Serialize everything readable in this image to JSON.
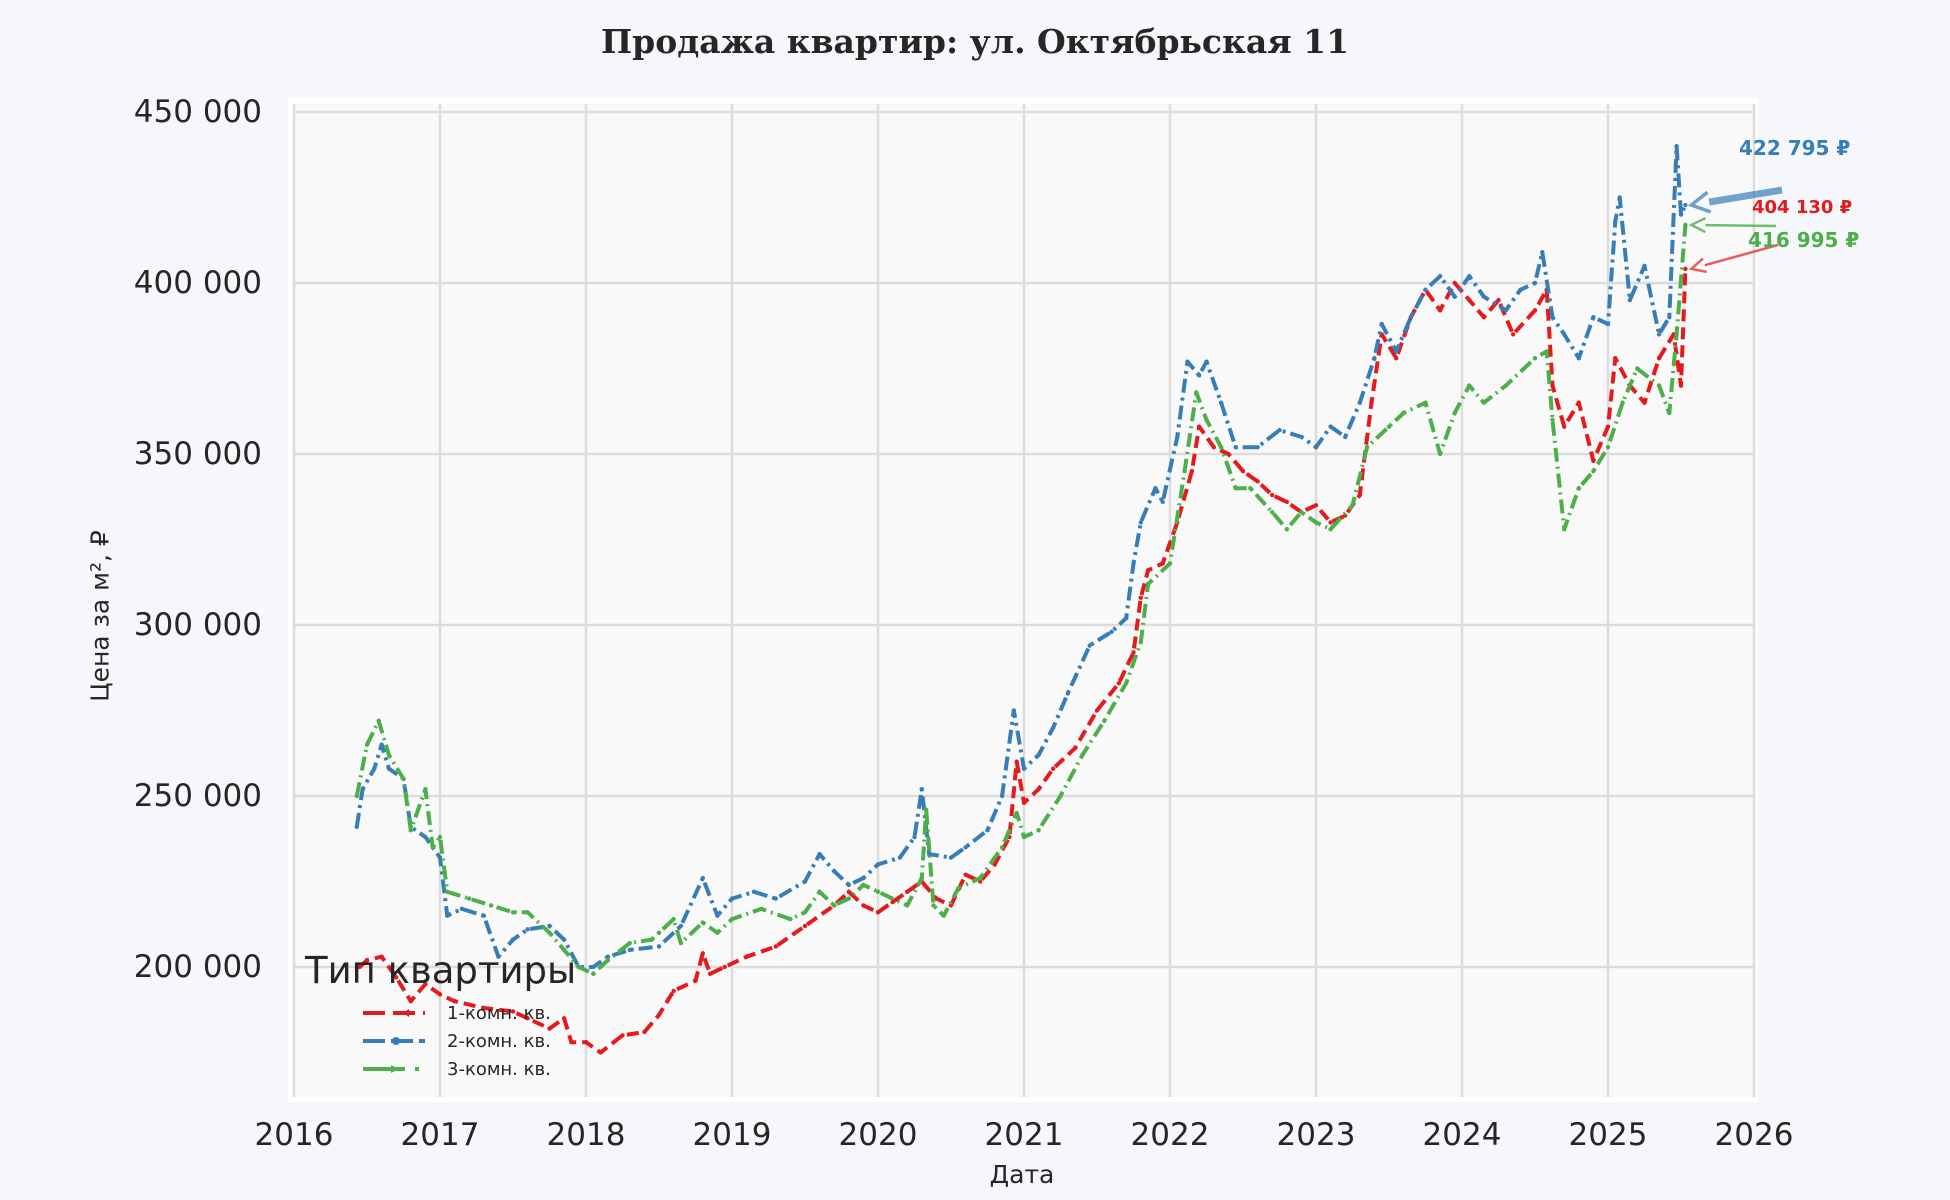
{
  "chart_data": {
    "type": "line",
    "title": "Продажа квартир: ул. Октябрьская 11",
    "xlabel": "Дата",
    "ylabel": "Цена за м², ₽",
    "xlim": [
      2016,
      2026
    ],
    "ylim": [
      160000,
      452000
    ],
    "grid": true,
    "legend_position": "lower left",
    "x_ticks": [
      "2016",
      "2017",
      "2018",
      "2019",
      "2020",
      "2021",
      "2022",
      "2023",
      "2024",
      "2025",
      "2026"
    ],
    "y_ticks": [
      200000,
      250000,
      300000,
      350000,
      400000,
      450000
    ],
    "y_tick_labels": [
      "200 000",
      "250 000",
      "300 000",
      "350 000",
      "400 000",
      "450 000"
    ],
    "legend_title": "Тип квартиры",
    "series": [
      {
        "name": "1-комн. кв.",
        "color": "#e41a1c",
        "dash": "12 6",
        "x": [
          2016.45,
          2016.5,
          2016.6,
          2016.7,
          2016.8,
          2016.9,
          2017.0,
          2017.1,
          2017.3,
          2017.5,
          2017.6,
          2017.75,
          2017.85,
          2017.9,
          2018.0,
          2018.1,
          2018.25,
          2018.4,
          2018.5,
          2018.6,
          2018.75,
          2018.8,
          2018.85,
          2018.95,
          2019.1,
          2019.3,
          2019.5,
          2019.7,
          2019.8,
          2019.9,
          2020.0,
          2020.1,
          2020.2,
          2020.3,
          2020.4,
          2020.5,
          2020.6,
          2020.7,
          2020.8,
          2020.9,
          2020.95,
          2021.0,
          2021.1,
          2021.2,
          2021.35,
          2021.5,
          2021.65,
          2021.75,
          2021.8,
          2021.85,
          2021.95,
          2022.05,
          2022.15,
          2022.2,
          2022.3,
          2022.4,
          2022.5,
          2022.6,
          2022.7,
          2022.8,
          2022.9,
          2023.0,
          2023.1,
          2023.2,
          2023.3,
          2023.38,
          2023.45,
          2023.55,
          2023.65,
          2023.75,
          2023.85,
          2023.95,
          2024.05,
          2024.15,
          2024.25,
          2024.35,
          2024.5,
          2024.58,
          2024.62,
          2024.7,
          2024.8,
          2024.9,
          2025.0,
          2025.05,
          2025.15,
          2025.25,
          2025.35,
          2025.45,
          2025.5,
          2025.53
        ],
        "y": [
          200000,
          202000,
          203000,
          197000,
          190000,
          195000,
          192000,
          190000,
          188000,
          187000,
          185000,
          182000,
          185000,
          178000,
          178000,
          175000,
          180000,
          181000,
          186000,
          193000,
          196000,
          204000,
          198000,
          200000,
          203000,
          206000,
          212000,
          218000,
          222000,
          218000,
          216000,
          219000,
          222000,
          225000,
          220000,
          218000,
          227000,
          225000,
          230000,
          238000,
          260000,
          248000,
          252000,
          258000,
          264000,
          275000,
          283000,
          292000,
          308000,
          316000,
          318000,
          330000,
          345000,
          358000,
          352000,
          350000,
          345000,
          342000,
          338000,
          336000,
          333000,
          335000,
          330000,
          332000,
          338000,
          365000,
          385000,
          378000,
          390000,
          398000,
          392000,
          400000,
          395000,
          390000,
          395000,
          385000,
          392000,
          398000,
          370000,
          358000,
          365000,
          348000,
          358000,
          378000,
          370000,
          365000,
          378000,
          385000,
          370000,
          404130
        ]
      },
      {
        "name": "2-комн. кв.",
        "color": "#377eb8",
        "dash": "14 5 3 5",
        "x": [
          2016.43,
          2016.47,
          2016.55,
          2016.6,
          2016.65,
          2016.75,
          2016.8,
          2016.9,
          2017.0,
          2017.05,
          2017.15,
          2017.3,
          2017.4,
          2017.5,
          2017.6,
          2017.75,
          2017.85,
          2017.95,
          2018.05,
          2018.15,
          2018.3,
          2018.5,
          2018.65,
          2018.8,
          2018.9,
          2019.0,
          2019.15,
          2019.3,
          2019.5,
          2019.6,
          2019.7,
          2019.8,
          2019.9,
          2020.0,
          2020.15,
          2020.25,
          2020.3,
          2020.35,
          2020.5,
          2020.6,
          2020.75,
          2020.85,
          2020.93,
          2021.0,
          2021.1,
          2021.2,
          2021.3,
          2021.45,
          2021.6,
          2021.7,
          2021.75,
          2021.8,
          2021.9,
          2021.95,
          2022.05,
          2022.12,
          2022.2,
          2022.25,
          2022.35,
          2022.45,
          2022.6,
          2022.75,
          2022.9,
          2023.0,
          2023.1,
          2023.2,
          2023.3,
          2023.4,
          2023.45,
          2023.55,
          2023.65,
          2023.75,
          2023.85,
          2023.95,
          2024.05,
          2024.15,
          2024.3,
          2024.4,
          2024.5,
          2024.55,
          2024.62,
          2024.7,
          2024.8,
          2024.9,
          2025.0,
          2025.05,
          2025.08,
          2025.15,
          2025.25,
          2025.35,
          2025.42,
          2025.47,
          2025.5,
          2025.53
        ],
        "y": [
          241000,
          252000,
          258000,
          265000,
          258000,
          255000,
          241000,
          238000,
          232000,
          215000,
          217000,
          215000,
          203000,
          208000,
          211000,
          212000,
          208000,
          200000,
          200000,
          203000,
          205000,
          206000,
          212000,
          226000,
          215000,
          220000,
          222000,
          220000,
          225000,
          233000,
          228000,
          224000,
          226000,
          230000,
          232000,
          238000,
          252000,
          233000,
          232000,
          235000,
          240000,
          250000,
          275000,
          258000,
          262000,
          270000,
          280000,
          294000,
          298000,
          302000,
          318000,
          330000,
          340000,
          336000,
          355000,
          377000,
          373000,
          377000,
          365000,
          352000,
          352000,
          357000,
          355000,
          352000,
          358000,
          355000,
          365000,
          378000,
          388000,
          380000,
          390000,
          398000,
          402000,
          396000,
          402000,
          396000,
          392000,
          398000,
          400000,
          409000,
          390000,
          385000,
          378000,
          390000,
          388000,
          418000,
          425000,
          395000,
          405000,
          385000,
          390000,
          440000,
          420000,
          422795
        ]
      },
      {
        "name": "3-комн. кв.",
        "color": "#4daf4a",
        "dash": "14 5 2 5",
        "x": [
          2016.43,
          2016.5,
          2016.58,
          2016.65,
          2016.75,
          2016.8,
          2016.9,
          2016.95,
          2017.0,
          2017.05,
          2017.2,
          2017.35,
          2017.5,
          2017.6,
          2017.75,
          2017.85,
          2017.95,
          2018.05,
          2018.15,
          2018.3,
          2018.45,
          2018.5,
          2018.6,
          2018.65,
          2018.8,
          2018.9,
          2019.0,
          2019.2,
          2019.4,
          2019.5,
          2019.6,
          2019.7,
          2019.8,
          2019.9,
          2020.0,
          2020.2,
          2020.3,
          2020.33,
          2020.38,
          2020.45,
          2020.55,
          2020.7,
          2020.85,
          2020.95,
          2021.0,
          2021.1,
          2021.25,
          2021.4,
          2021.55,
          2021.7,
          2021.8,
          2021.85,
          2022.0,
          2022.1,
          2022.18,
          2022.25,
          2022.35,
          2022.45,
          2022.55,
          2022.7,
          2022.8,
          2022.9,
          2023.0,
          2023.1,
          2023.25,
          2023.35,
          2023.5,
          2023.6,
          2023.75,
          2023.85,
          2023.95,
          2024.05,
          2024.15,
          2024.3,
          2024.5,
          2024.58,
          2024.62,
          2024.7,
          2024.8,
          2024.9,
          2025.0,
          2025.1,
          2025.2,
          2025.35,
          2025.42,
          2025.47,
          2025.53
        ],
        "y": [
          250000,
          265000,
          272000,
          262000,
          255000,
          240000,
          252000,
          235000,
          238000,
          222000,
          220000,
          218000,
          216000,
          216000,
          210000,
          205000,
          200000,
          198000,
          202000,
          207000,
          208000,
          210000,
          214000,
          207000,
          213000,
          210000,
          214000,
          217000,
          214000,
          216000,
          222000,
          218000,
          220000,
          224000,
          222000,
          218000,
          226000,
          246000,
          218000,
          215000,
          223000,
          226000,
          235000,
          245000,
          238000,
          240000,
          250000,
          262000,
          272000,
          283000,
          295000,
          312000,
          318000,
          345000,
          368000,
          360000,
          352000,
          340000,
          340000,
          333000,
          328000,
          333000,
          330000,
          328000,
          335000,
          352000,
          358000,
          362000,
          365000,
          350000,
          362000,
          370000,
          365000,
          370000,
          378000,
          380000,
          360000,
          328000,
          340000,
          345000,
          352000,
          365000,
          375000,
          370000,
          362000,
          385000,
          416995
        ]
      }
    ],
    "annotations": [
      {
        "text": "422 795 ₽",
        "series": "2-комн. кв.",
        "color": "#377eb8",
        "x": 2025.53,
        "y": 422795
      },
      {
        "text": "404 130 ₽",
        "series": "1-комн. кв.",
        "color": "#e41a1c",
        "x": 2025.53,
        "y": 404130
      },
      {
        "text": "416 995 ₽",
        "series": "3-комн. кв.",
        "color": "#4daf4a",
        "x": 2025.53,
        "y": 416995
      }
    ]
  }
}
